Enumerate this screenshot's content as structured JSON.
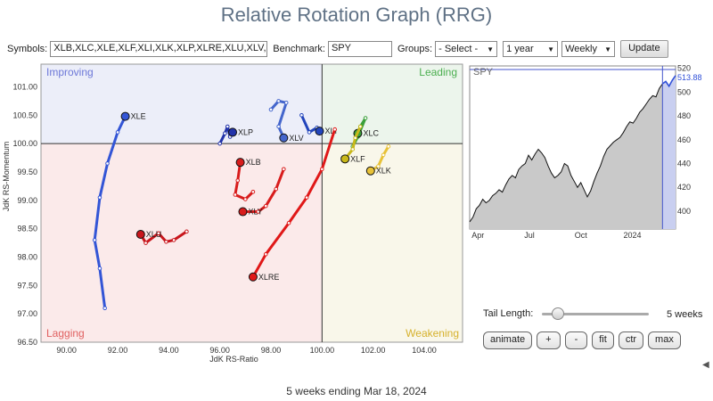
{
  "title": "Relative Rotation Graph (RRG)",
  "toolbar": {
    "symbols_label": "Symbols:",
    "symbols_value": "XLB,XLC,XLE,XLF,XLI,XLK,XLP,XLRE,XLU,XLV,XL",
    "benchmark_label": "Benchmark:",
    "benchmark_value": "SPY",
    "groups_label": "Groups:",
    "groups_selected": "- Select -",
    "period_selected": "1 year",
    "frequency_selected": "Weekly",
    "update_label": "Update"
  },
  "quadrants": {
    "improving": "Improving",
    "leading": "Leading",
    "lagging": "Lagging",
    "weakening": "Weakening",
    "colors": {
      "improving": "#eceef9",
      "leading": "#ecf5ec",
      "lagging": "#fbeaea",
      "weakening": "#f9f7ea",
      "improving_text": "#6d78d8",
      "leading_text": "#4caf50",
      "lagging_text": "#e06060",
      "weakening_text": "#d6b12c"
    }
  },
  "chart_data": [
    {
      "type": "scatter",
      "title": "",
      "xlabel": "JdK RS-Ratio",
      "ylabel": "JdK RS-Momentum",
      "xlim": [
        89.0,
        105.5
      ],
      "ylim": [
        96.5,
        101.4
      ],
      "x_ticks": [
        90.0,
        92.0,
        94.0,
        96.0,
        98.0,
        100.0,
        102.0,
        104.0
      ],
      "y_ticks": [
        96.5,
        97.0,
        97.5,
        98.0,
        98.5,
        99.0,
        99.5,
        100.0,
        100.5,
        101.0
      ],
      "series": [
        {
          "name": "XLE",
          "color": "#3355d6",
          "points": [
            [
              91.5,
              97.1
            ],
            [
              91.3,
              97.8
            ],
            [
              91.1,
              98.3
            ],
            [
              91.3,
              99.05
            ],
            [
              91.6,
              99.65
            ],
            [
              92.0,
              100.2
            ],
            [
              92.3,
              100.48
            ]
          ]
        },
        {
          "name": "XLP",
          "color": "#2233aa",
          "points": [
            [
              96.0,
              100.0
            ],
            [
              96.2,
              100.18
            ],
            [
              96.3,
              100.3
            ],
            [
              96.4,
              100.12
            ],
            [
              96.5,
              100.2
            ]
          ]
        },
        {
          "name": "XLV",
          "color": "#4466cc",
          "points": [
            [
              98.0,
              100.6
            ],
            [
              98.3,
              100.75
            ],
            [
              98.6,
              100.72
            ],
            [
              98.3,
              100.3
            ],
            [
              98.5,
              100.1
            ]
          ]
        },
        {
          "name": "XLI",
          "color": "#2244bb",
          "points": [
            [
              99.2,
              100.5
            ],
            [
              99.5,
              100.2
            ],
            [
              99.8,
              100.28
            ],
            [
              99.9,
              100.22
            ]
          ]
        },
        {
          "name": "XLC",
          "color": "#3aa03a",
          "points": [
            [
              101.5,
              100.3
            ],
            [
              101.7,
              100.45
            ],
            [
              101.4,
              100.12
            ],
            [
              101.2,
              99.95
            ],
            [
              101.4,
              100.18
            ]
          ]
        },
        {
          "name": "XLF",
          "color": "#c9b81a",
          "points": [
            [
              101.5,
              100.3
            ],
            [
              101.3,
              100.1
            ],
            [
              101.2,
              99.9
            ],
            [
              100.9,
              99.73
            ]
          ]
        },
        {
          "name": "XLK",
          "color": "#e8c238",
          "points": [
            [
              102.6,
              99.95
            ],
            [
              102.4,
              99.8
            ],
            [
              102.2,
              99.6
            ],
            [
              101.9,
              99.52
            ]
          ]
        },
        {
          "name": "XLB",
          "color": "#d81c1c",
          "points": [
            [
              97.3,
              99.15
            ],
            [
              97.0,
              99.02
            ],
            [
              96.6,
              99.1
            ],
            [
              96.7,
              99.35
            ],
            [
              96.8,
              99.67
            ]
          ]
        },
        {
          "name": "XLY",
          "color": "#d81c1c",
          "points": [
            [
              98.5,
              99.55
            ],
            [
              98.2,
              99.2
            ],
            [
              97.8,
              98.9
            ],
            [
              97.5,
              98.8
            ],
            [
              96.9,
              98.8
            ]
          ]
        },
        {
          "name": "XLU",
          "color": "#c8161c",
          "points": [
            [
              94.7,
              98.45
            ],
            [
              94.2,
              98.3
            ],
            [
              93.9,
              98.27
            ],
            [
              93.6,
              98.42
            ],
            [
              93.1,
              98.25
            ],
            [
              92.9,
              98.4
            ]
          ]
        },
        {
          "name": "XLRE",
          "color": "#e01818",
          "points": [
            [
              100.5,
              100.25
            ],
            [
              100.0,
              99.55
            ],
            [
              99.4,
              99.05
            ],
            [
              98.7,
              98.6
            ],
            [
              97.8,
              98.05
            ],
            [
              97.3,
              97.65
            ]
          ]
        }
      ]
    },
    {
      "type": "line",
      "title": "",
      "series_label": "SPY",
      "xlabel": "",
      "ylabel": "",
      "x_ticks": [
        "Apr",
        "Jul",
        "Oct",
        "2024"
      ],
      "y_ticks": [
        400,
        420,
        440,
        460,
        480,
        500,
        520
      ],
      "ylim": [
        385,
        522
      ],
      "last_value": "513.88",
      "values": [
        391,
        395,
        402,
        405,
        410,
        407,
        409,
        413,
        415,
        418,
        416,
        422,
        427,
        430,
        428,
        435,
        438,
        440,
        447,
        443,
        448,
        452,
        449,
        445,
        438,
        432,
        428,
        430,
        433,
        440,
        438,
        430,
        425,
        420,
        424,
        418,
        412,
        417,
        425,
        432,
        438,
        446,
        452,
        455,
        458,
        460,
        462,
        466,
        471,
        475,
        474,
        478,
        483,
        486,
        490,
        494,
        497,
        496,
        503,
        507,
        509,
        505,
        510,
        513.88
      ]
    }
  ],
  "panel": {
    "tail_label": "Tail Length:",
    "tail_value": "5 weeks",
    "tail_fraction": 0.15,
    "buttons": [
      "animate",
      "+",
      "-",
      "fit",
      "ctr",
      "max"
    ]
  },
  "footer": "5 weeks ending Mar 18, 2024"
}
